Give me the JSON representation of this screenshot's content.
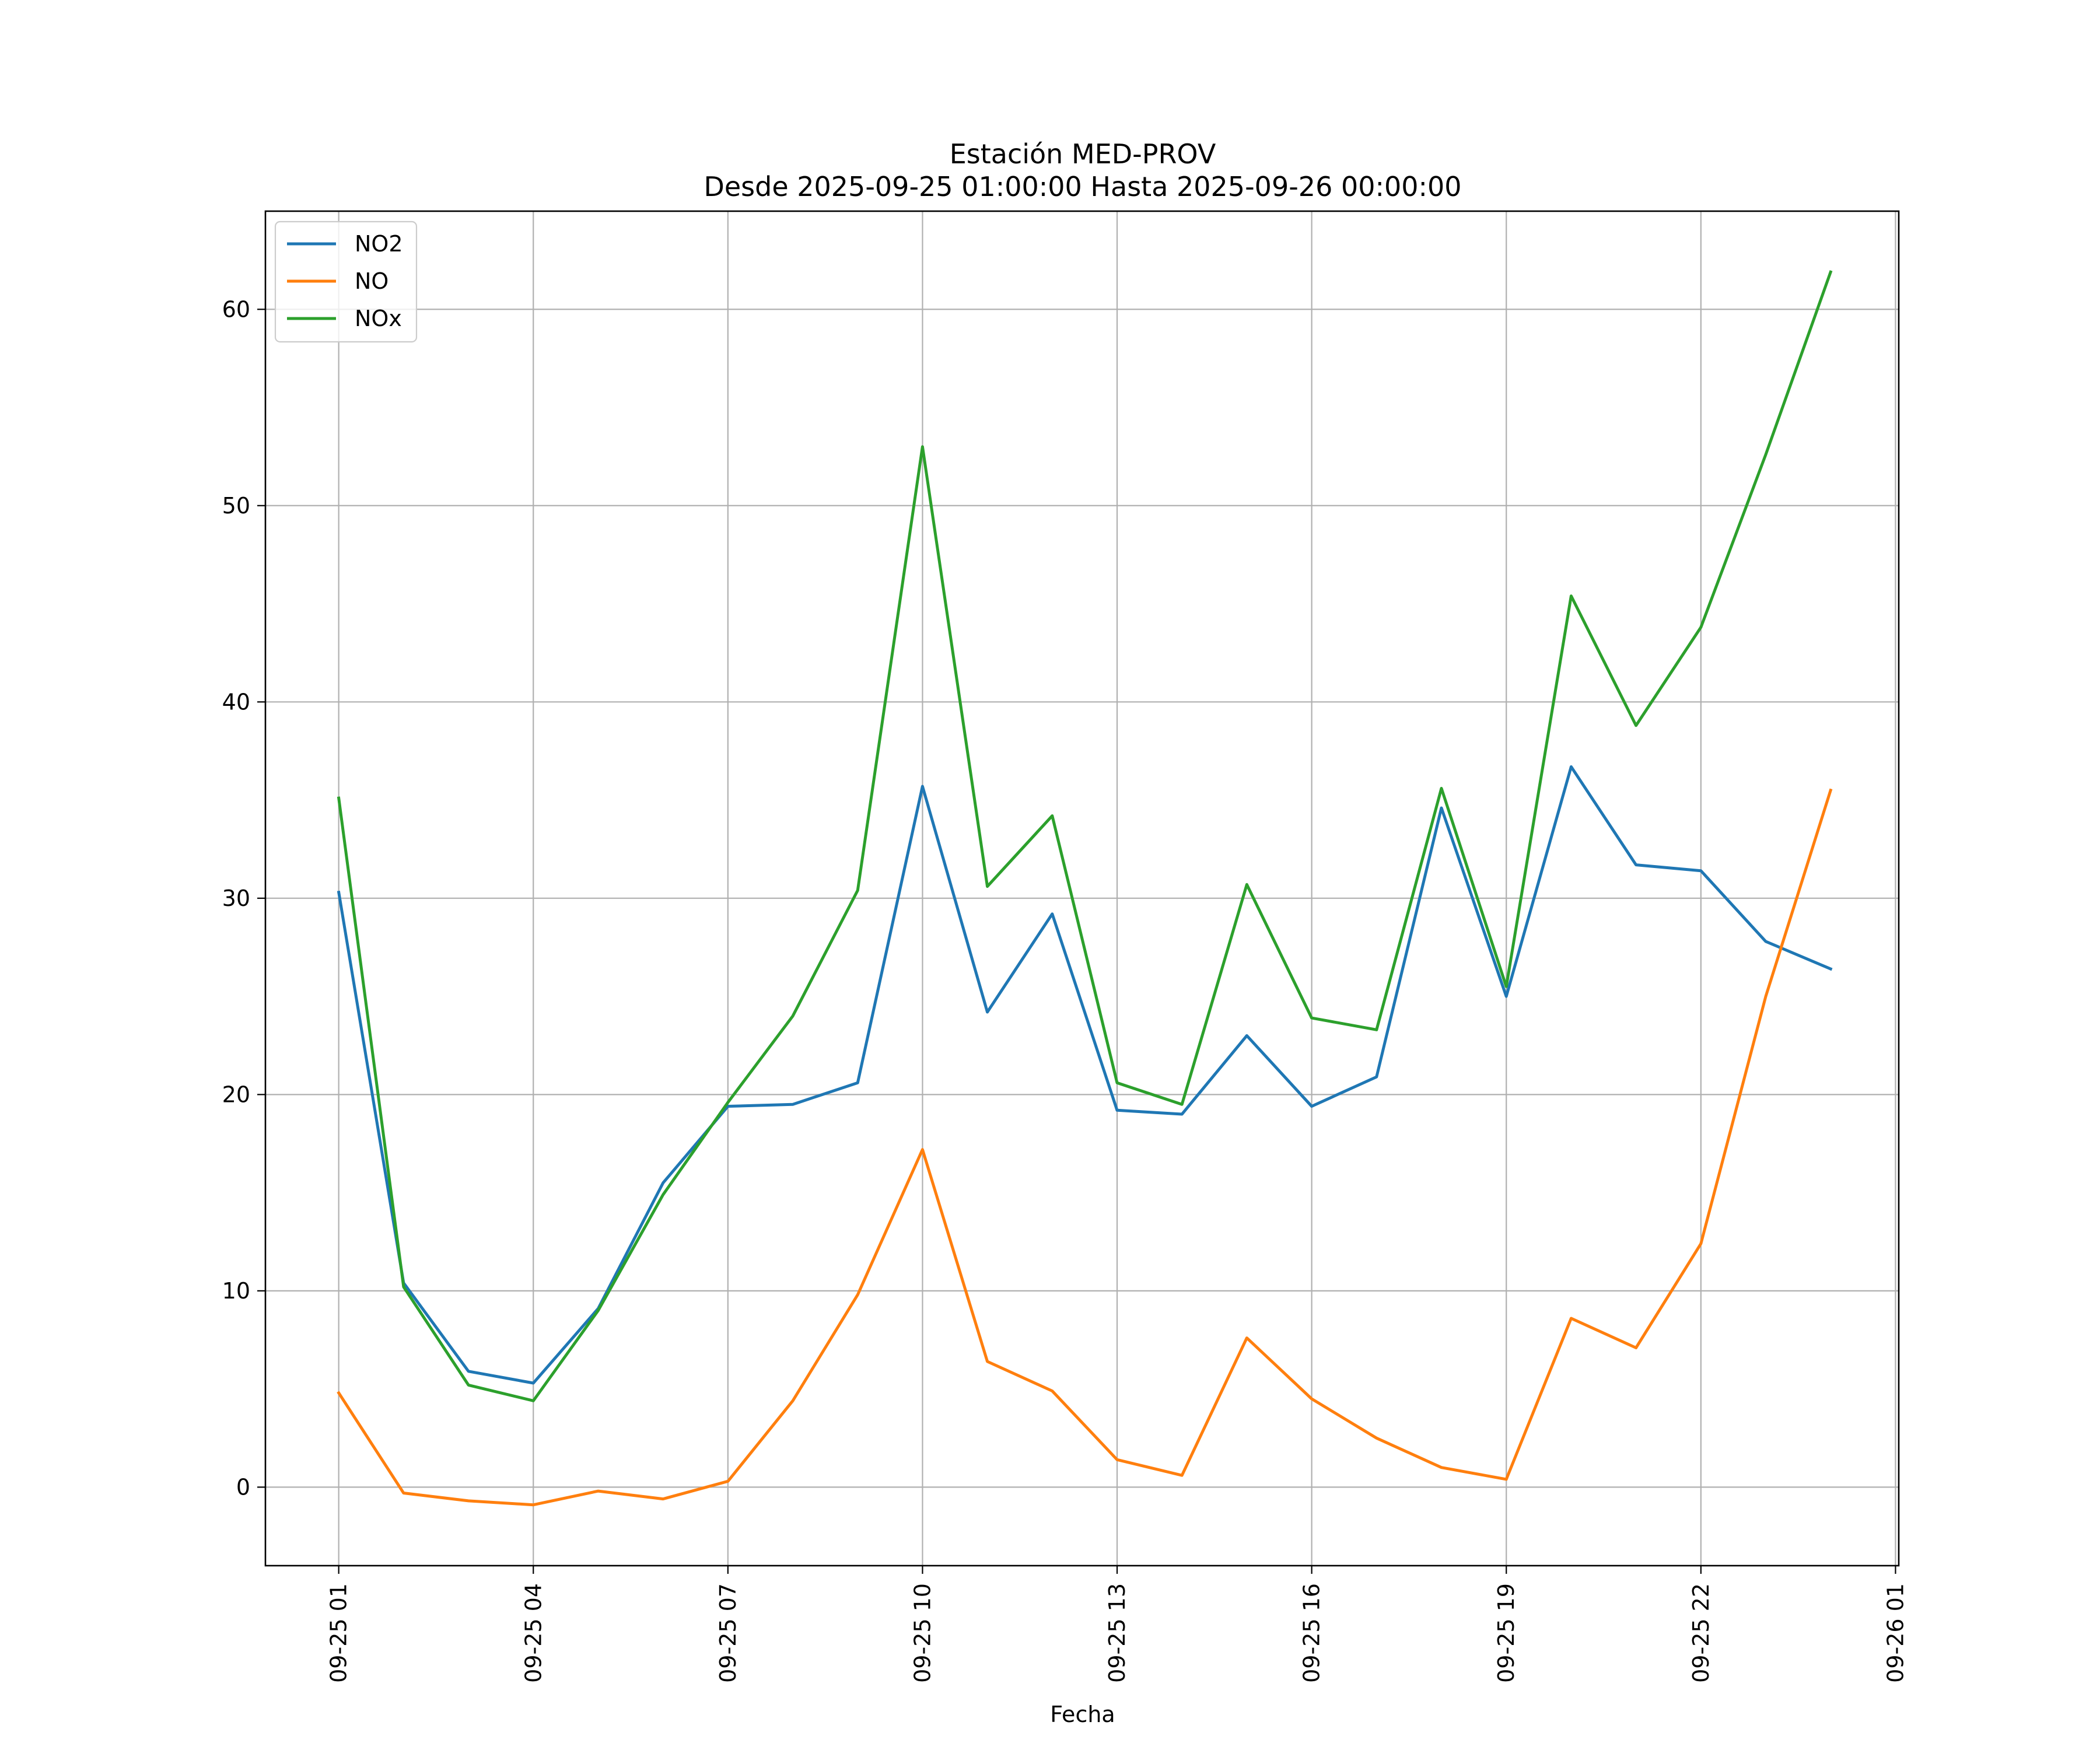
{
  "chart_data": {
    "type": "line",
    "title": "Estación MED-PROV",
    "subtitle": "Desde 2025-09-25 01:00:00 Hasta 2025-09-26 00:00:00",
    "xlabel": "Fecha",
    "ylabel": "",
    "x": [
      "09-25 01",
      "09-25 02",
      "09-25 03",
      "09-25 04",
      "09-25 05",
      "09-25 06",
      "09-25 07",
      "09-25 08",
      "09-25 09",
      "09-25 10",
      "09-25 11",
      "09-25 12",
      "09-25 13",
      "09-25 14",
      "09-25 15",
      "09-25 16",
      "09-25 17",
      "09-25 18",
      "09-25 19",
      "09-25 20",
      "09-25 21",
      "09-25 22",
      "09-25 23",
      "09-26 00"
    ],
    "x_hours": [
      1,
      2,
      3,
      4,
      5,
      6,
      7,
      8,
      9,
      10,
      11,
      12,
      13,
      14,
      15,
      16,
      17,
      18,
      19,
      20,
      21,
      22,
      23,
      24
    ],
    "xlim_hours": [
      -0.13,
      25.05
    ],
    "x_ticks": [
      {
        "hour": 1,
        "label": "09-25 01"
      },
      {
        "hour": 4,
        "label": "09-25 04"
      },
      {
        "hour": 7,
        "label": "09-25 07"
      },
      {
        "hour": 10,
        "label": "09-25 10"
      },
      {
        "hour": 13,
        "label": "09-25 13"
      },
      {
        "hour": 16,
        "label": "09-25 16"
      },
      {
        "hour": 19,
        "label": "09-25 19"
      },
      {
        "hour": 22,
        "label": "09-25 22"
      },
      {
        "hour": 25,
        "label": "09-26 01"
      }
    ],
    "ylim": [
      -4,
      65
    ],
    "y_ticks": [
      0,
      10,
      20,
      30,
      40,
      50,
      60
    ],
    "grid": true,
    "legend_position": "top-left",
    "series": [
      {
        "name": "NO2",
        "color": "#1f77b4",
        "values": [
          30.3,
          10.4,
          5.9,
          5.3,
          9.1,
          15.5,
          19.4,
          19.5,
          20.6,
          35.7,
          24.2,
          29.2,
          19.2,
          19.0,
          23.0,
          19.4,
          20.9,
          34.6,
          25.0,
          36.7,
          31.7,
          31.4,
          27.8,
          26.4
        ]
      },
      {
        "name": "NO",
        "color": "#ff7f0e",
        "values": [
          4.8,
          -0.3,
          -0.7,
          -0.9,
          -0.2,
          -0.6,
          0.3,
          4.4,
          9.8,
          17.2,
          6.4,
          4.9,
          1.4,
          0.6,
          7.6,
          4.5,
          2.5,
          1.0,
          0.4,
          8.6,
          7.1,
          12.4,
          25.0,
          35.5
        ]
      },
      {
        "name": "NOx",
        "color": "#2ca02c",
        "values": [
          35.1,
          10.2,
          5.2,
          4.4,
          9.0,
          14.9,
          19.6,
          24.0,
          30.4,
          53.0,
          30.6,
          34.2,
          20.6,
          19.5,
          30.7,
          23.9,
          23.3,
          35.6,
          25.5,
          45.4,
          38.8,
          43.8,
          52.6,
          61.9
        ]
      }
    ]
  }
}
